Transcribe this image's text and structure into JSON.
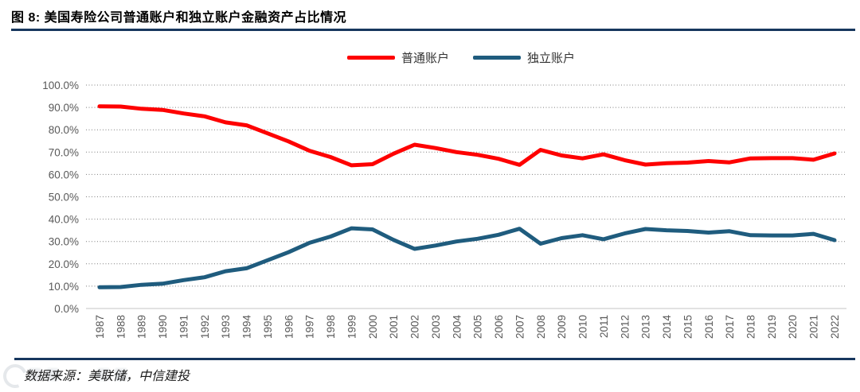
{
  "header": {
    "title": "图 8:  美国寿险公司普通账户和独立账户金融资产占比情况"
  },
  "footer": {
    "source": "数据来源：美联储，中信建投"
  },
  "colors": {
    "divider": "#17375E",
    "grid_dotted": "#7F7F7F",
    "axis_baseline": "#D9D9D9",
    "axis_text": "#595959"
  },
  "chart_data": {
    "type": "line",
    "title": "美国寿险公司普通账户和独立账户金融资产占比情况",
    "x": [
      1987,
      1988,
      1989,
      1990,
      1991,
      1992,
      1993,
      1994,
      1995,
      1996,
      1997,
      1998,
      1999,
      2000,
      2001,
      2002,
      2003,
      2004,
      2005,
      2006,
      2007,
      2008,
      2009,
      2010,
      2011,
      2012,
      2013,
      2014,
      2015,
      2016,
      2017,
      2018,
      2019,
      2020,
      2021,
      2022
    ],
    "series": [
      {
        "name": "普通账户",
        "color": "#FE0000",
        "values": [
          90.5,
          90.4,
          89.4,
          88.9,
          87.3,
          86.0,
          83.3,
          82.0,
          78.4,
          74.8,
          70.6,
          67.8,
          64.1,
          64.6,
          69.3,
          73.3,
          71.8,
          70.0,
          68.8,
          67.0,
          64.3,
          71.0,
          68.5,
          67.2,
          69.0,
          66.4,
          64.4,
          65.0,
          65.3,
          66.0,
          65.4,
          67.2,
          67.3,
          67.3,
          66.6,
          69.4
        ]
      },
      {
        "name": "独立账户",
        "color": "#1F5C7E",
        "values": [
          9.5,
          9.6,
          10.6,
          11.1,
          12.7,
          14.0,
          16.7,
          18.0,
          21.6,
          25.2,
          29.4,
          32.2,
          35.9,
          35.4,
          30.7,
          26.7,
          28.2,
          30.0,
          31.2,
          33.0,
          35.7,
          29.0,
          31.5,
          32.8,
          31.0,
          33.6,
          35.6,
          35.0,
          34.7,
          34.0,
          34.6,
          32.8,
          32.7,
          32.7,
          33.4,
          30.6
        ]
      }
    ],
    "xlabel": "",
    "ylabel": "",
    "ylim": [
      0,
      100
    ],
    "ytick_step": 10,
    "ytick_format": "percent_one_decimal",
    "grid": "horizontal dotted",
    "legend_position": "top-center",
    "x_tick_rotation": -90
  }
}
